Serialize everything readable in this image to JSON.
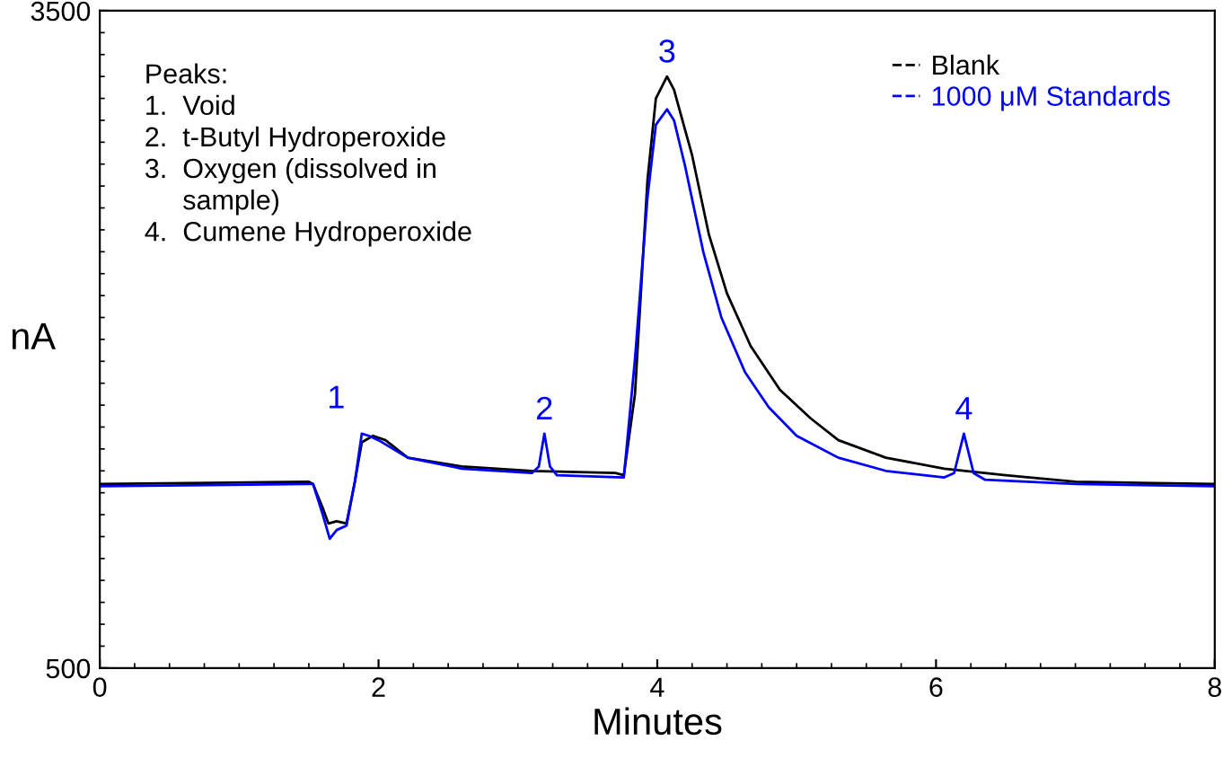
{
  "chart_data": {
    "type": "line",
    "xlabel": "Minutes",
    "ylabel": "nA",
    "xlim": [
      0,
      8
    ],
    "xticks": [
      0,
      2,
      4,
      6,
      8
    ],
    "ylim": [
      500,
      3500
    ],
    "yticks": [
      500,
      3500
    ],
    "grid": false,
    "legend": "top right",
    "marker": "none",
    "line_style": "solid",
    "series": [
      {
        "name": "Blank",
        "color": "#000000",
        "x": [
          0,
          1.5,
          1.53,
          1.6,
          1.64,
          1.7,
          1.77,
          1.83,
          1.88,
          1.96,
          2.05,
          2.21,
          2.6,
          3.1,
          3.7,
          3.76,
          3.84,
          3.93,
          3.99,
          4.07,
          4.12,
          4.25,
          4.37,
          4.5,
          4.67,
          4.88,
          5.1,
          5.3,
          5.64,
          6.06,
          6.5,
          7,
          8
        ],
        "values": [
          1340,
          1350,
          1340,
          1230,
          1160,
          1170,
          1160,
          1350,
          1530,
          1560,
          1540,
          1460,
          1420,
          1400,
          1390,
          1380,
          1750,
          2730,
          3100,
          3200,
          3140,
          2840,
          2480,
          2210,
          1970,
          1770,
          1640,
          1540,
          1460,
          1410,
          1380,
          1350,
          1340
        ]
      },
      {
        "name": "1000 μM Standards",
        "color": "#0000ff",
        "x": [
          0,
          1.5,
          1.53,
          1.6,
          1.65,
          1.7,
          1.77,
          1.83,
          1.88,
          1.93,
          2.0,
          2.21,
          2.6,
          3.1,
          3.15,
          3.19,
          3.23,
          3.28,
          3.76,
          3.84,
          3.93,
          3.99,
          4.07,
          4.12,
          4.2,
          4.33,
          4.46,
          4.63,
          4.8,
          5.0,
          5.3,
          5.64,
          6.06,
          6.13,
          6.2,
          6.27,
          6.35,
          7,
          8
        ],
        "values": [
          1330,
          1340,
          1340,
          1200,
          1090,
          1130,
          1150,
          1350,
          1570,
          1560,
          1540,
          1460,
          1410,
          1390,
          1420,
          1570,
          1420,
          1380,
          1370,
          1910,
          2650,
          2980,
          3050,
          3000,
          2790,
          2400,
          2100,
          1850,
          1690,
          1560,
          1460,
          1400,
          1370,
          1390,
          1570,
          1390,
          1360,
          1340,
          1330
        ]
      }
    ],
    "annotations": [
      "Peaks:\n1.  Void\n2.  t-Butyl Hydroperoxide\n3.  Oxygen (dissolved in\n     sample)\n4.  Cumene Hydroperoxide",
      "1",
      {
        "text": "2",
        "x": 3.19,
        "y": 1570
      },
      {
        "text": "3",
        "x": 4.07,
        "y": 3200
      },
      {
        "text": "4",
        "x": 6.2,
        "y": 1570
      }
    ]
  }
}
